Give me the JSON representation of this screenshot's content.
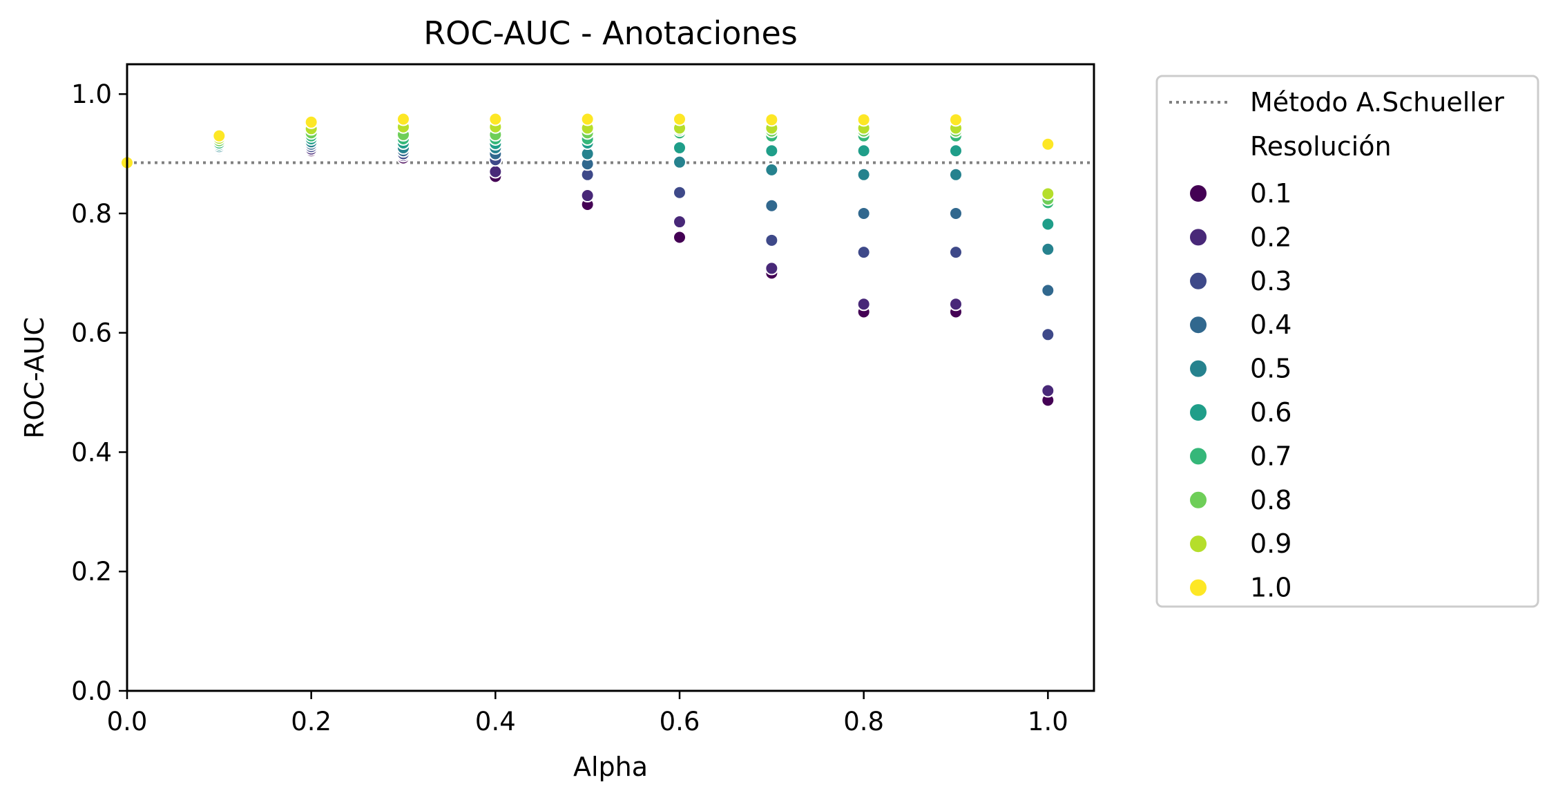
{
  "chart_data": {
    "type": "scatter",
    "title": "ROC-AUC - Anotaciones",
    "xlabel": "Alpha",
    "ylabel": "ROC-AUC",
    "xlim": [
      0.0,
      1.05
    ],
    "ylim": [
      0.0,
      1.05
    ],
    "xticks": [
      "0.0",
      "0.2",
      "0.4",
      "0.6",
      "0.8",
      "1.0"
    ],
    "yticks": [
      "0.0",
      "0.2",
      "0.4",
      "0.6",
      "0.8",
      "1.0"
    ],
    "grid": false,
    "legend_position": "outside right",
    "reference_line": {
      "name": "Método A.Schueller",
      "y": 0.885,
      "style": "dotted",
      "color": "#808080"
    },
    "legend_title": "Resolución",
    "x": [
      0.0,
      0.1,
      0.2,
      0.3,
      0.4,
      0.5,
      0.6,
      0.7,
      0.8,
      0.9,
      1.0
    ],
    "series": [
      {
        "name": "0.1",
        "color": "#440154",
        "values": [
          0.885,
          0.905,
          0.905,
          0.893,
          0.862,
          0.815,
          0.76,
          0.7,
          0.635,
          0.635,
          0.487
        ]
      },
      {
        "name": "0.2",
        "color": "#482878",
        "values": [
          0.885,
          0.906,
          0.908,
          0.897,
          0.87,
          0.83,
          0.786,
          0.708,
          0.648,
          0.648,
          0.503
        ]
      },
      {
        "name": "0.3",
        "color": "#3e4989",
        "values": [
          0.885,
          0.908,
          0.912,
          0.9,
          0.89,
          0.865,
          0.835,
          0.755,
          0.735,
          0.735,
          0.597
        ]
      },
      {
        "name": "0.4",
        "color": "#31688e",
        "values": [
          0.885,
          0.91,
          0.916,
          0.905,
          0.9,
          0.883,
          0.884,
          0.813,
          0.8,
          0.8,
          0.671
        ]
      },
      {
        "name": "0.5",
        "color": "#26828e",
        "values": [
          0.885,
          0.912,
          0.92,
          0.91,
          0.91,
          0.9,
          0.886,
          0.873,
          0.865,
          0.865,
          0.74
        ]
      },
      {
        "name": "0.6",
        "color": "#1f9e89",
        "values": [
          0.885,
          0.915,
          0.925,
          0.918,
          0.917,
          0.918,
          0.91,
          0.905,
          0.905,
          0.905,
          0.782
        ]
      },
      {
        "name": "0.7",
        "color": "#35b779",
        "values": [
          0.885,
          0.918,
          0.93,
          0.925,
          0.925,
          0.925,
          0.935,
          0.93,
          0.93,
          0.93,
          0.818
        ]
      },
      {
        "name": "0.8",
        "color": "#6ece58",
        "values": [
          0.885,
          0.922,
          0.935,
          0.932,
          0.932,
          0.935,
          0.94,
          0.938,
          0.938,
          0.938,
          0.824
        ]
      },
      {
        "name": "0.9",
        "color": "#b5de2b",
        "values": [
          0.885,
          0.926,
          0.942,
          0.945,
          0.945,
          0.943,
          0.943,
          0.943,
          0.943,
          0.943,
          0.833
        ]
      },
      {
        "name": "1.0",
        "color": "#fde725",
        "values": [
          0.885,
          0.93,
          0.953,
          0.958,
          0.958,
          0.958,
          0.958,
          0.957,
          0.957,
          0.957,
          0.916
        ]
      }
    ]
  }
}
